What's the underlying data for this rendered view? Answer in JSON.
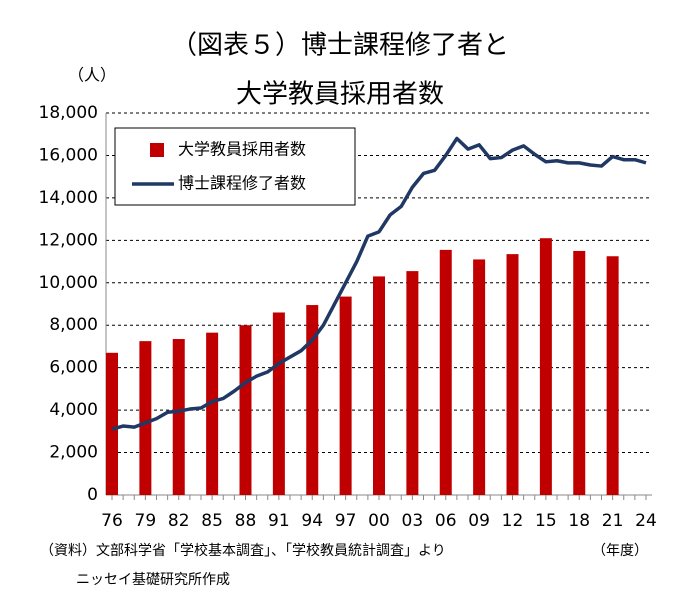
{
  "chart_data": {
    "type": "bar",
    "title": [
      "（図表５）博士課程修了者と",
      "大学教員採用者数"
    ],
    "y_label": "（人）",
    "x_label": "（年度）",
    "notes": [
      "（資料）文部科学省「学校基本調査」、「学校教員統計調査」より",
      "ニッセイ基礎研究所作成"
    ],
    "categories": [
      "76",
      null,
      null,
      "79",
      null,
      null,
      "82",
      null,
      null,
      "85",
      null,
      null,
      "88",
      null,
      null,
      "91",
      null,
      null,
      "94",
      null,
      null,
      "97",
      null,
      null,
      "00",
      null,
      null,
      "03",
      null,
      null,
      "06",
      null,
      null,
      "09",
      null,
      null,
      "12",
      null,
      null,
      "15",
      null,
      null,
      "18",
      null,
      null,
      "21",
      null,
      null,
      "24"
    ],
    "series": [
      {
        "name": "大学教員採用者数",
        "type": "bar",
        "color": "#c00000",
        "values": [
          6700,
          null,
          null,
          7250,
          null,
          null,
          7350,
          null,
          null,
          7650,
          null,
          null,
          8000,
          null,
          null,
          8600,
          null,
          null,
          8950,
          null,
          null,
          9350,
          null,
          null,
          10300,
          null,
          null,
          10550,
          null,
          null,
          11550,
          null,
          null,
          11100,
          null,
          null,
          11350,
          null,
          null,
          12100,
          null,
          null,
          11500,
          null,
          null,
          11250,
          null,
          null,
          null
        ]
      },
      {
        "name": "博士課程修了者数",
        "type": "line",
        "color": "#1f3864",
        "values": [
          3100,
          3250,
          3200,
          3400,
          3600,
          3900,
          3950,
          4050,
          4100,
          4400,
          4550,
          4900,
          5300,
          5600,
          5800,
          6200,
          6500,
          6800,
          7300,
          8000,
          9000,
          10000,
          11000,
          12200,
          12400,
          13200,
          13600,
          14500,
          15150,
          15300,
          16000,
          16800,
          16300,
          16500,
          15850,
          15900,
          16250,
          16450,
          16050,
          15700,
          15750,
          15650,
          15650,
          15550,
          15500,
          15950,
          15800,
          15800,
          15650
        ]
      }
    ],
    "ylim": [
      0,
      18000
    ],
    "yticks": [
      0,
      {
        "value": 2000,
        "label": "2,000"
      },
      {
        "value": 4000,
        "label": "4,000"
      },
      {
        "value": 6000,
        "label": "6,000"
      },
      {
        "value": 8000,
        "label": "8,000"
      },
      {
        "value": 10000,
        "label": "10,000"
      },
      {
        "value": 12000,
        "label": "12,000"
      },
      {
        "value": 14000,
        "label": "14,000"
      },
      {
        "value": 16000,
        "label": "16,000"
      },
      {
        "value": 18000,
        "label": "18,000"
      }
    ],
    "grid": true,
    "legend": "upper left"
  }
}
